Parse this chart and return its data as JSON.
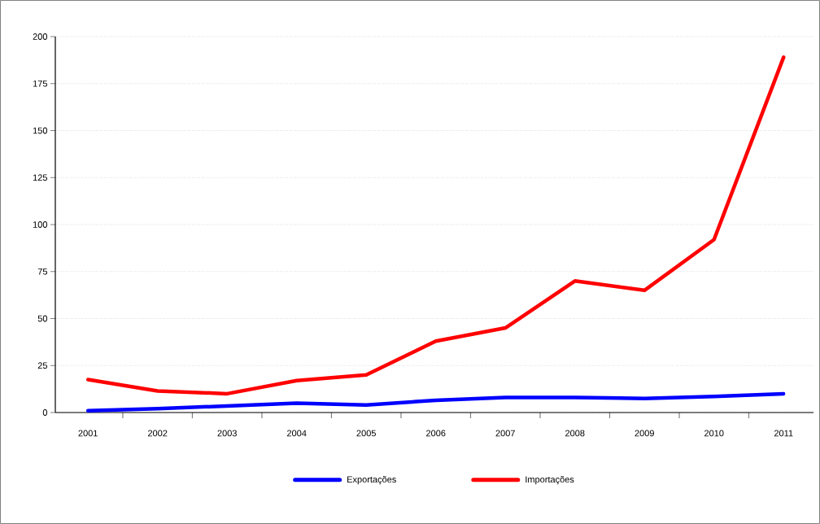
{
  "chart_data": {
    "type": "line",
    "categories": [
      "2001",
      "2002",
      "2003",
      "2004",
      "2005",
      "2006",
      "2007",
      "2008",
      "2009",
      "2010",
      "2011"
    ],
    "series": [
      {
        "name": "Exportações",
        "color": "#0000ff",
        "values": [
          1,
          2,
          3.5,
          5,
          4,
          6.5,
          8,
          8,
          7.5,
          8.5,
          10
        ]
      },
      {
        "name": "Importações",
        "color": "#ff0000",
        "values": [
          17.5,
          11.5,
          10,
          17,
          20,
          38,
          45,
          70,
          65,
          92,
          189
        ]
      }
    ],
    "ylim": [
      0,
      200
    ],
    "yticks": [
      0,
      25,
      50,
      75,
      100,
      125,
      150,
      175,
      200
    ],
    "grid": "y",
    "legend": "bottom",
    "marker": "none",
    "line_style": "solid"
  }
}
